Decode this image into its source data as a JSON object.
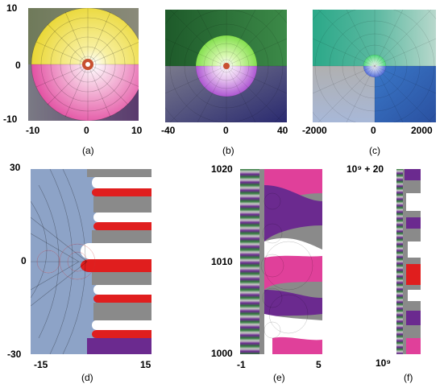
{
  "panels": [
    {
      "id": "a",
      "caption": "(a)",
      "xticks": [
        "-10",
        "0",
        "10"
      ],
      "yticks": [
        "10",
        "0",
        "-10"
      ]
    },
    {
      "id": "b",
      "caption": "(b)",
      "xticks": [
        "-40",
        "0",
        "40"
      ],
      "yticks": []
    },
    {
      "id": "c",
      "caption": "(c)",
      "xticks": [
        "-2000",
        "0",
        "2000"
      ],
      "yticks": []
    },
    {
      "id": "d",
      "caption": "(d)",
      "xticks": [
        "-15",
        "15"
      ],
      "yticks": [
        "30",
        "0",
        "-30"
      ]
    },
    {
      "id": "e",
      "caption": "(e)",
      "xticks": [
        "-1",
        "5"
      ],
      "yticks": [
        "1020",
        "1010",
        "1000"
      ]
    },
    {
      "id": "f",
      "caption": "(f)",
      "xticks": [],
      "yticks": [
        "10⁹ + 20",
        "10⁹"
      ]
    }
  ],
  "colors": {
    "gray": "#8a8a8a",
    "yellow": "#f0e040",
    "magenta": "#e0409a",
    "red": "#e01e1e",
    "purple": "#6b2a8f",
    "green": "#2f7a3a",
    "teal": "#2aa88a",
    "blue": "#3466b8",
    "navy": "#2a2a6e"
  }
}
